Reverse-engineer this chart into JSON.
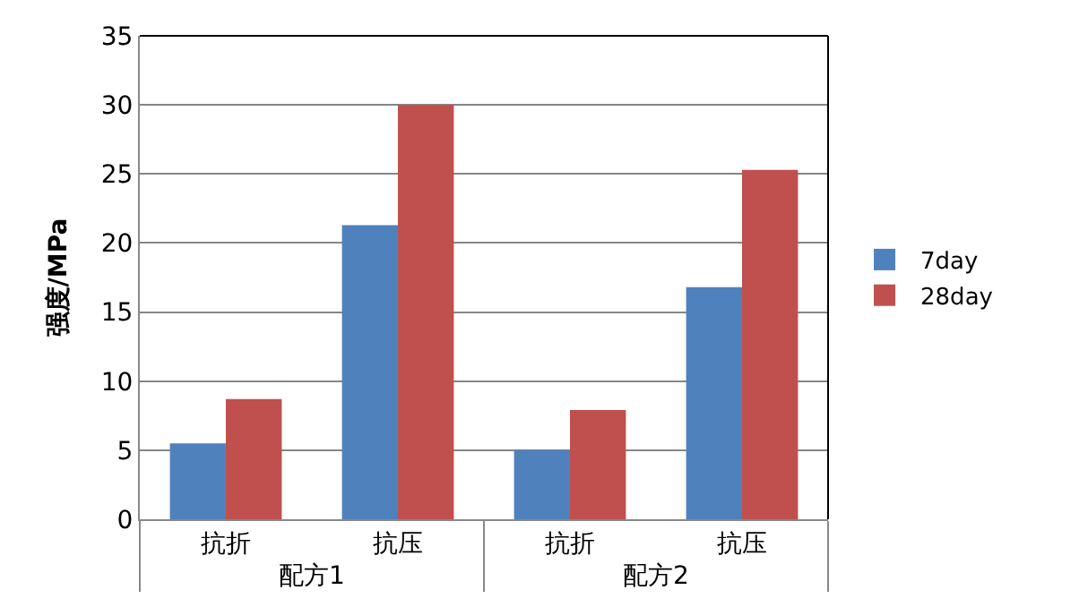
{
  "chart_data": {
    "type": "bar",
    "ylabel": "强度/MPa",
    "categories": [
      "抗折",
      "抗压",
      "抗折",
      "抗压"
    ],
    "annotations": [
      "配方1",
      "配方2"
    ],
    "series": [
      {
        "name": "7day",
        "color": "#4f81bd",
        "values": [
          5.5,
          21.3,
          5.0,
          16.8
        ]
      },
      {
        "name": "28day",
        "color": "#c0504d",
        "values": [
          8.7,
          30.0,
          7.9,
          25.3
        ]
      }
    ],
    "ylim": [
      0,
      35
    ],
    "yticks": [
      0,
      5,
      10,
      15,
      20,
      25,
      30,
      35
    ],
    "grid": "y",
    "legend": "right"
  }
}
